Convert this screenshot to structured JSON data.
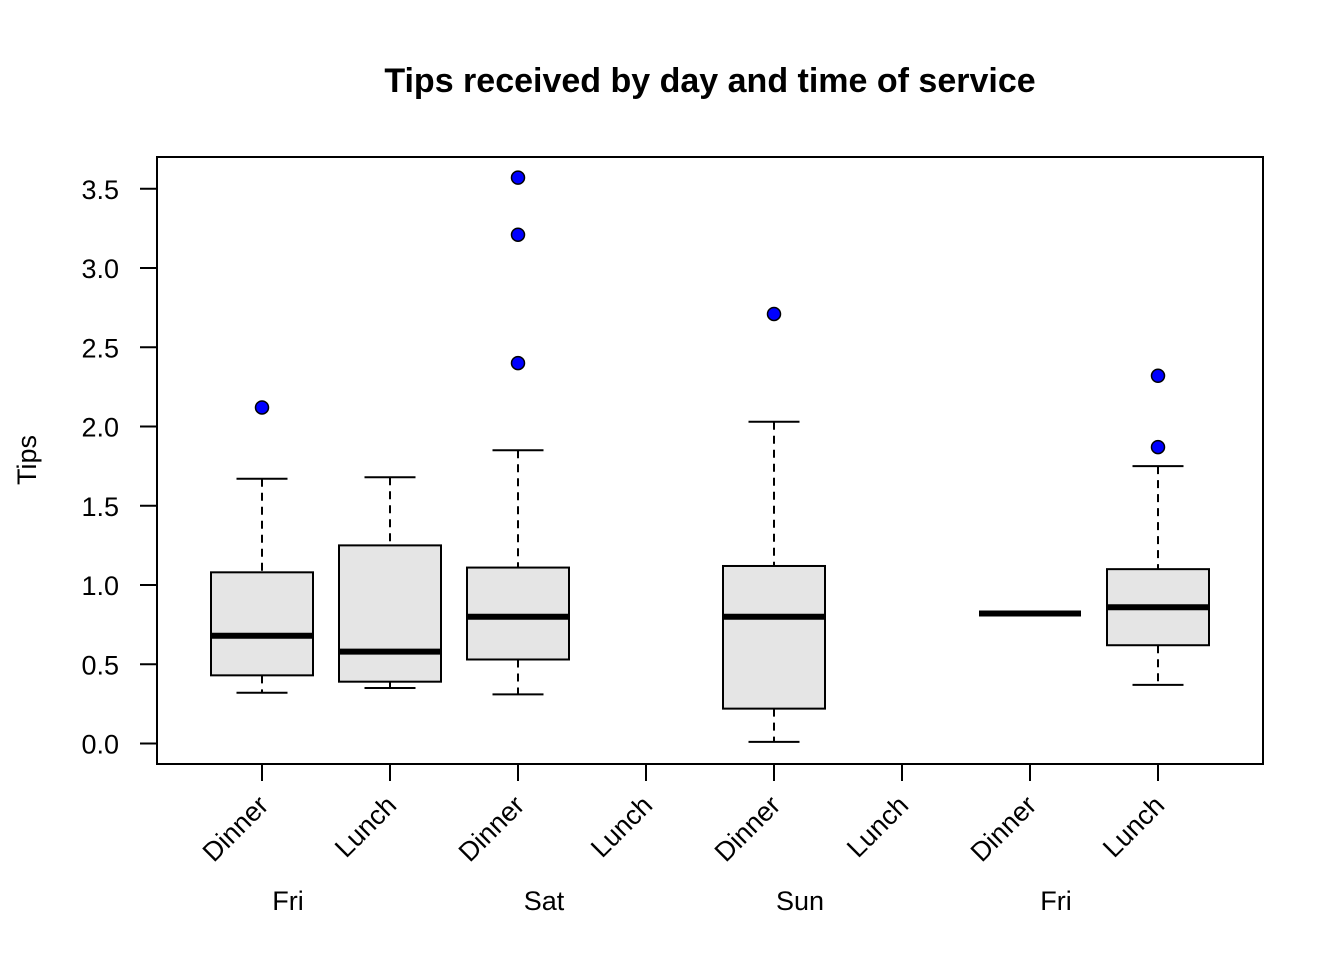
{
  "chart_data": {
    "type": "box",
    "title": "Tips received by day and time of service",
    "xlabel": "",
    "ylabel": "Tips",
    "ylim": [
      -0.12,
      3.7
    ],
    "yticks": [
      "0.0",
      "0.5",
      "1.0",
      "1.5",
      "2.0",
      "2.5",
      "3.0",
      "3.5"
    ],
    "ytick_values": [
      0,
      0.5,
      1.0,
      1.5,
      2.0,
      2.5,
      3.0,
      3.5
    ],
    "grid": false,
    "box_fill": "#e5e5e5",
    "outlier_color": "#0000ff",
    "groups": [
      {
        "day": "Fri",
        "boxes": [
          {
            "time": "Dinner",
            "stats": {
              "lower_whisker": 0.32,
              "q1": 0.43,
              "median": 0.68,
              "q3": 1.08,
              "upper_whisker": 1.67
            },
            "outliers": [
              2.12
            ]
          },
          {
            "time": "Lunch",
            "stats": {
              "lower_whisker": 0.35,
              "q1": 0.39,
              "median": 0.58,
              "q3": 1.25,
              "upper_whisker": 1.68
            },
            "outliers": []
          }
        ]
      },
      {
        "day": "Sat",
        "boxes": [
          {
            "time": "Dinner",
            "stats": {
              "lower_whisker": 0.31,
              "q1": 0.53,
              "median": 0.8,
              "q3": 1.11,
              "upper_whisker": 1.85
            },
            "outliers": [
              2.4,
              3.21,
              3.57
            ]
          },
          {
            "time": "Lunch",
            "stats": null,
            "outliers": []
          }
        ]
      },
      {
        "day": "Sun",
        "boxes": [
          {
            "time": "Dinner",
            "stats": {
              "lower_whisker": 0.01,
              "q1": 0.22,
              "median": 0.8,
              "q3": 1.12,
              "upper_whisker": 2.03
            },
            "outliers": [
              2.71
            ]
          },
          {
            "time": "Lunch",
            "stats": null,
            "outliers": []
          }
        ]
      },
      {
        "day": "Fri",
        "boxes": [
          {
            "time": "Dinner",
            "stats": {
              "lower_whisker": 0.82,
              "q1": 0.82,
              "median": 0.82,
              "q3": 0.82,
              "upper_whisker": 0.82
            },
            "outliers": []
          },
          {
            "time": "Lunch",
            "stats": {
              "lower_whisker": 0.37,
              "q1": 0.62,
              "median": 0.86,
              "q3": 1.1,
              "upper_whisker": 1.75
            },
            "outliers": [
              1.87,
              2.32
            ]
          }
        ]
      }
    ]
  }
}
